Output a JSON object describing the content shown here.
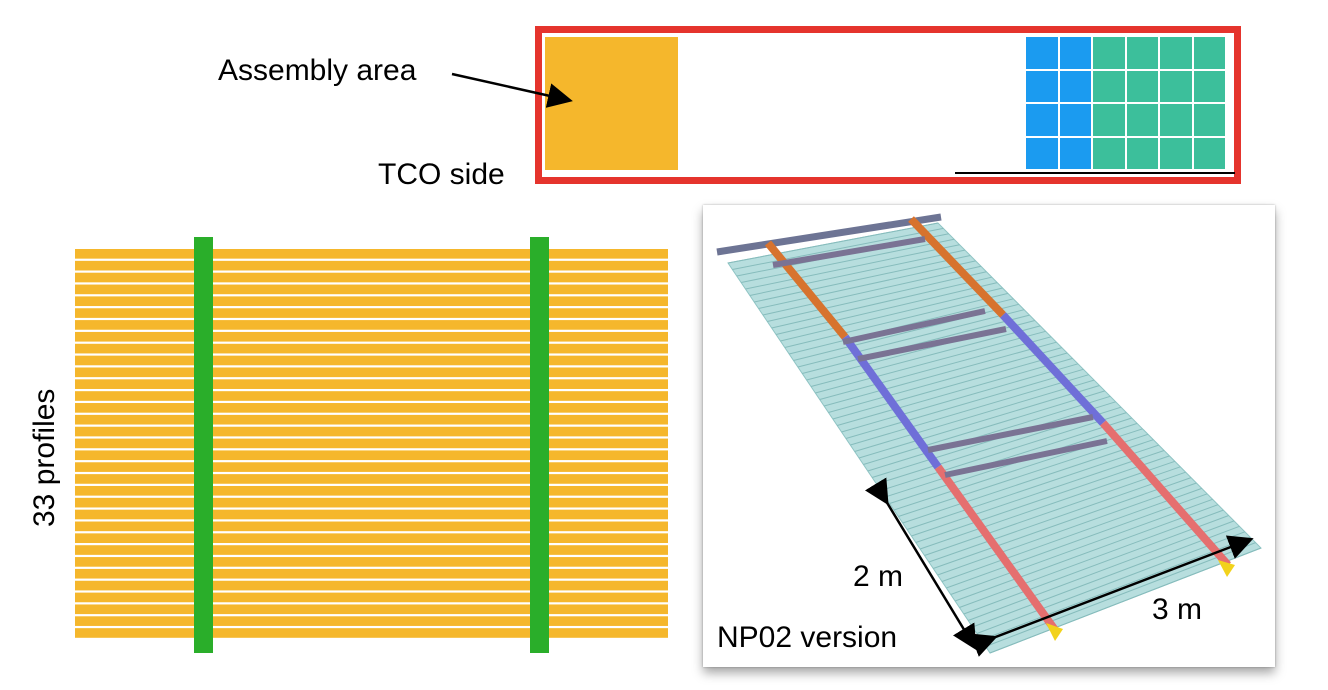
{
  "labels": {
    "assembly_area": "Assembly area",
    "tco_side": "TCO side",
    "profiles": "33 profiles",
    "dim_2m": "2 m",
    "dim_3m": "3 m",
    "version": "NP02 version"
  },
  "layout": {
    "blue_columns": 2,
    "green_columns": 4,
    "rows": 4
  },
  "profiles": {
    "count": 33
  },
  "colors": {
    "frame_red": "#e5342d",
    "assembly_orange": "#f5b72c",
    "module_blue": "#1b9bf0",
    "module_green": "#3cbf9b",
    "bar_green": "#2aae2a",
    "profile_orange": "#f5b72c"
  }
}
